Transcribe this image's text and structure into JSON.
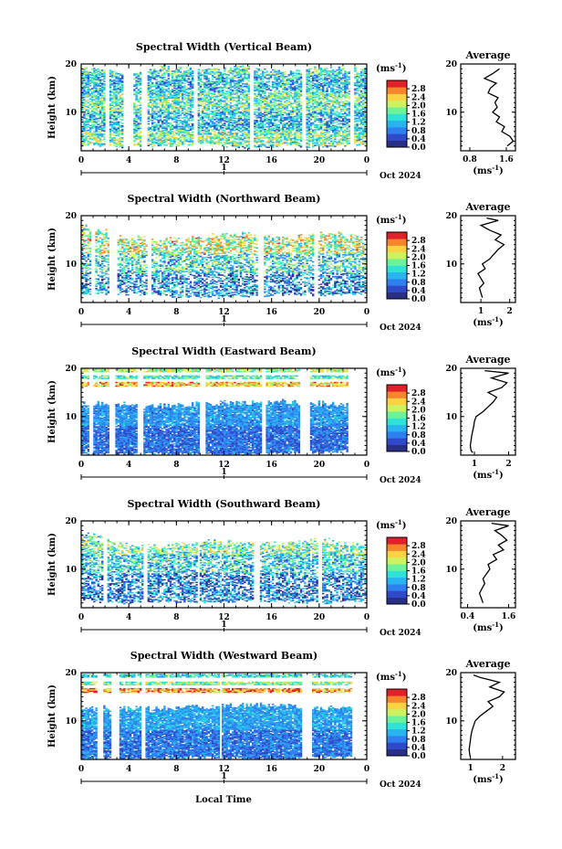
{
  "figure_xlabel": "Local Time",
  "colormap": [
    "#2a2f86",
    "#2f49c9",
    "#2e7ff0",
    "#27b4ef",
    "#2ee3d6",
    "#6cf39a",
    "#cdf260",
    "#fbd241",
    "#f7852c",
    "#e0202a"
  ],
  "chart_data": [
    {
      "type": "heatmap",
      "beam": "Vertical",
      "title": "Spectral Width (Vertical Beam)",
      "ylabel": "Height (km)",
      "xlabel": "",
      "xlim": [
        0,
        24
      ],
      "xticks": [
        "0",
        "4",
        "8",
        "12",
        "16",
        "20",
        "0"
      ],
      "ylim": [
        2,
        20
      ],
      "yticks": [
        "20",
        "10"
      ],
      "date_marker": "1",
      "date_label": "Oct 2024",
      "colorbar": {
        "unit": "(ms",
        "unit_exp": "-1",
        "unit_close": ")",
        "range": [
          0.0,
          3.2
        ],
        "ticks": [
          "2.8",
          "2.4",
          "2.0",
          "1.6",
          "1.2",
          "0.8",
          "0.4",
          "0.0"
        ]
      },
      "gap_hours": [
        [
          2.0,
          2.4
        ],
        [
          3.6,
          4.4
        ],
        [
          5.0,
          5.6
        ],
        [
          9.4,
          9.8
        ],
        [
          14.2,
          14.6
        ],
        [
          18.6,
          19.0
        ],
        [
          22.6,
          23.0
        ]
      ],
      "top_km": [
        19.0,
        18.0,
        19.2,
        18.5,
        19.3,
        18.2,
        19.0,
        18.8
      ],
      "base_km": [
        3.2,
        2.8,
        3.0,
        3.5,
        2.6,
        3.0,
        2.8,
        3.4
      ],
      "level_bands": [
        [
          3.0,
          6.0,
          1.7
        ],
        [
          6.0,
          10.0,
          1.2
        ],
        [
          10.0,
          14.0,
          1.6
        ],
        [
          14.0,
          17.5,
          1.2
        ],
        [
          17.5,
          19.5,
          1.5
        ]
      ],
      "noise": 0.8,
      "fill": 0.72,
      "seed": 11,
      "average_profile": {
        "title": "Average",
        "xlim": [
          0.6,
          1.8
        ],
        "xticks": [
          "0.8",
          "1.6"
        ],
        "xlabel": "(ms",
        "xlabel_exp": "-1",
        "xlabel_close": ")",
        "ylim": [
          2,
          20
        ],
        "yticks": [
          "20",
          "10"
        ],
        "height_km": [
          3,
          4,
          5,
          6,
          7,
          8,
          9,
          10,
          11,
          12,
          13,
          14,
          15,
          16,
          17,
          18,
          19
        ],
        "value_ms": [
          1.62,
          1.75,
          1.68,
          1.5,
          1.56,
          1.38,
          1.45,
          1.3,
          1.4,
          1.35,
          1.42,
          1.2,
          1.25,
          1.38,
          1.12,
          1.3,
          1.45
        ]
      }
    },
    {
      "type": "heatmap",
      "beam": "Northward",
      "title": "Spectral Width (Northward Beam)",
      "ylabel": "Height (km)",
      "xlabel": "",
      "xlim": [
        0,
        24
      ],
      "xticks": [
        "0",
        "4",
        "8",
        "12",
        "16",
        "20",
        "0"
      ],
      "ylim": [
        2,
        20
      ],
      "yticks": [
        "20",
        "10"
      ],
      "date_marker": "1",
      "date_label": "Oct 2024",
      "colorbar": {
        "unit": "(ms",
        "unit_exp": "-1",
        "unit_close": ")",
        "range": [
          0.0,
          3.2
        ],
        "ticks": [
          "2.8",
          "2.4",
          "2.0",
          "1.6",
          "1.2",
          "0.8",
          "0.4",
          "0.0"
        ]
      },
      "gap_hours": [
        [
          0.8,
          1.2
        ],
        [
          2.4,
          3.0
        ],
        [
          5.6,
          6.0
        ],
        [
          14.8,
          15.4
        ],
        [
          19.6,
          20.0
        ]
      ],
      "top_km": [
        18.0,
        15.5,
        14.8,
        15.5,
        16.2,
        15.0,
        16.5,
        15.2
      ],
      "base_km": [
        3.5,
        3.8,
        3.4,
        3.0,
        3.2,
        3.6,
        3.4,
        3.8
      ],
      "level_bands": [
        [
          3.0,
          8.0,
          0.9
        ],
        [
          8.0,
          12.0,
          1.4
        ],
        [
          12.0,
          16.5,
          2.0
        ],
        [
          16.5,
          19.0,
          1.6
        ]
      ],
      "noise": 0.9,
      "fill": 0.55,
      "seed": 23,
      "average_profile": {
        "title": "Average",
        "xlim": [
          0.3,
          2.2
        ],
        "xticks": [
          "1",
          "2"
        ],
        "xlabel": "(ms",
        "xlabel_exp": "-1",
        "xlabel_close": ")",
        "ylim": [
          2,
          20
        ],
        "yticks": [
          "20",
          "10"
        ],
        "height_km": [
          3,
          4,
          5,
          6,
          7,
          8,
          9,
          10,
          11,
          12,
          13,
          14,
          15,
          16,
          17,
          18,
          19,
          19.5
        ],
        "value_ms": [
          1.05,
          1.0,
          0.95,
          1.1,
          1.0,
          0.9,
          1.15,
          1.05,
          1.3,
          1.45,
          1.6,
          1.8,
          1.5,
          1.7,
          1.3,
          1.0,
          1.6,
          1.2
        ]
      }
    },
    {
      "type": "heatmap",
      "beam": "Eastward",
      "title": "Spectral Width (Eastward Beam)",
      "ylabel": "Height (km)",
      "xlabel": "",
      "xlim": [
        0,
        24
      ],
      "xticks": [
        "0",
        "4",
        "8",
        "12",
        "16",
        "20",
        "0"
      ],
      "ylim": [
        2,
        20
      ],
      "yticks": [
        "20",
        "10"
      ],
      "date_marker": "1",
      "date_label": "Oct 2024",
      "colorbar": {
        "unit": "(ms",
        "unit_exp": "-1",
        "unit_close": ")",
        "range": [
          0.0,
          3.2
        ],
        "ticks": [
          "2.8",
          "2.4",
          "2.0",
          "1.6",
          "1.2",
          "0.8",
          "0.4",
          "0.0"
        ]
      },
      "gap_hours": [
        [
          0.6,
          1.0
        ],
        [
          2.4,
          2.8
        ],
        [
          4.8,
          5.2
        ],
        [
          10.0,
          10.4
        ],
        [
          15.2,
          15.6
        ],
        [
          18.4,
          19.2
        ],
        [
          22.4,
          24.0
        ]
      ],
      "top_km": [
        12.5,
        12.4,
        12.2,
        12.6,
        12.8,
        13.0,
        12.6,
        11.8
      ],
      "base_km": [
        2.2,
        2.2,
        2.4,
        2.2,
        2.2,
        2.4,
        2.6,
        2.8
      ],
      "level_bands": [
        [
          2.0,
          8.0,
          0.7
        ],
        [
          8.0,
          12.5,
          0.95
        ]
      ],
      "upper_layers": [
        [
          16.2,
          17.2,
          2.4
        ],
        [
          17.8,
          18.4,
          1.6
        ],
        [
          19.2,
          19.8,
          2.0
        ]
      ],
      "noise": 0.35,
      "fill": 0.92,
      "seed": 37,
      "average_profile": {
        "title": "Average",
        "xlim": [
          0.6,
          2.2
        ],
        "xticks": [
          "1",
          "2"
        ],
        "xlabel": "(ms",
        "xlabel_exp": "-1",
        "xlabel_close": ")",
        "ylim": [
          2,
          20
        ],
        "yticks": [
          "20",
          "10"
        ],
        "height_km": [
          2.5,
          3,
          4,
          5,
          6,
          7,
          8,
          9,
          10,
          11,
          12,
          13,
          14,
          15,
          16,
          17,
          18,
          19,
          19.5
        ],
        "value_ms": [
          0.95,
          0.9,
          0.88,
          0.9,
          0.92,
          0.95,
          0.98,
          1.0,
          1.05,
          1.25,
          1.4,
          1.55,
          1.65,
          1.4,
          1.8,
          1.95,
          1.5,
          2.0,
          1.3
        ]
      }
    },
    {
      "type": "heatmap",
      "beam": "Southward",
      "title": "Spectral Width (Southward Beam)",
      "ylabel": "Height (km)",
      "xlabel": "",
      "xlim": [
        0,
        24
      ],
      "xticks": [
        "0",
        "4",
        "8",
        "12",
        "16",
        "20",
        "0"
      ],
      "ylim": [
        2,
        20
      ],
      "yticks": [
        "20",
        "10"
      ],
      "date_marker": "1",
      "date_label": "Oct 2024",
      "colorbar": {
        "unit": "(ms",
        "unit_exp": "-1",
        "unit_close": ")",
        "range": [
          0.0,
          3.2
        ],
        "ticks": [
          "2.8",
          "2.4",
          "2.0",
          "1.6",
          "1.2",
          "0.8",
          "0.4",
          "0.0"
        ]
      },
      "gap_hours": [
        [
          1.8,
          2.2
        ],
        [
          5.2,
          5.6
        ],
        [
          9.8,
          10.0
        ],
        [
          14.6,
          15.0
        ],
        [
          20.0,
          20.2
        ]
      ],
      "top_km": [
        17.5,
        15.0,
        14.5,
        15.8,
        15.2,
        15.0,
        16.0,
        14.6
      ],
      "base_km": [
        3.5,
        3.0,
        3.2,
        3.0,
        3.4,
        3.2,
        3.0,
        3.6
      ],
      "level_bands": [
        [
          3.0,
          9.0,
          0.75
        ],
        [
          9.0,
          13.0,
          1.3
        ],
        [
          13.0,
          16.5,
          1.7
        ],
        [
          16.5,
          19.5,
          1.4
        ]
      ],
      "noise": 0.8,
      "fill": 0.6,
      "seed": 51,
      "average_profile": {
        "title": "Average",
        "xlim": [
          0.2,
          1.8
        ],
        "xticks": [
          "0.4",
          "1.6"
        ],
        "xlabel": "(ms",
        "xlabel_exp": "-1",
        "xlabel_close": ")",
        "ylim": [
          2,
          20
        ],
        "yticks": [
          "20",
          "10"
        ],
        "height_km": [
          3,
          4,
          5,
          6,
          7,
          8,
          9,
          10,
          11,
          12,
          13,
          14,
          15,
          16,
          17,
          18,
          19,
          19.5
        ],
        "value_ms": [
          0.85,
          0.8,
          0.75,
          0.82,
          0.9,
          0.85,
          0.95,
          1.05,
          1.0,
          1.25,
          1.15,
          1.45,
          1.3,
          1.55,
          1.4,
          1.2,
          1.6,
          1.1
        ]
      }
    },
    {
      "type": "heatmap",
      "beam": "Westward",
      "title": "Spectral Width (Westward Beam)",
      "ylabel": "Height (km)",
      "xlabel": "",
      "xlim": [
        0,
        24
      ],
      "xticks": [
        "0",
        "4",
        "8",
        "12",
        "16",
        "20",
        "0"
      ],
      "ylim": [
        2,
        20
      ],
      "yticks": [
        "20",
        "10"
      ],
      "date_marker": "1",
      "date_label": "Oct 2024",
      "colorbar": {
        "unit": "(ms",
        "unit_exp": "-1",
        "unit_close": ")",
        "range": [
          0.0,
          3.2
        ],
        "ticks": [
          "2.8",
          "2.4",
          "2.0",
          "1.6",
          "1.2",
          "0.8",
          "0.4",
          "0.0"
        ]
      },
      "gap_hours": [
        [
          1.4,
          1.8
        ],
        [
          2.6,
          3.2
        ],
        [
          5.0,
          5.4
        ],
        [
          11.6,
          11.8
        ],
        [
          18.6,
          19.4
        ],
        [
          22.8,
          24.0
        ]
      ],
      "top_km": [
        12.5,
        12.4,
        12.6,
        12.8,
        13.2,
        13.0,
        12.6,
        12.0
      ],
      "base_km": [
        2.2,
        2.2,
        2.2,
        2.4,
        2.2,
        2.2,
        2.4,
        2.6
      ],
      "level_bands": [
        [
          2.0,
          8.0,
          0.75
        ],
        [
          8.0,
          12.5,
          1.0
        ]
      ],
      "upper_layers": [
        [
          15.8,
          16.6,
          2.6
        ],
        [
          17.4,
          18.0,
          1.8
        ],
        [
          19.0,
          19.6,
          1.4
        ]
      ],
      "noise": 0.35,
      "fill": 0.92,
      "seed": 67,
      "average_profile": {
        "title": "Average",
        "xlim": [
          0.7,
          2.4
        ],
        "xticks": [
          "1",
          "2"
        ],
        "xlabel": "(ms",
        "xlabel_exp": "-1",
        "xlabel_close": ")",
        "ylim": [
          2,
          20
        ],
        "yticks": [
          "20",
          "10"
        ],
        "height_km": [
          2.5,
          3,
          4,
          5,
          6,
          7,
          8,
          9,
          10,
          11,
          12,
          13,
          14,
          15,
          16,
          17,
          18,
          19,
          19.5
        ],
        "value_ms": [
          1.0,
          0.98,
          0.96,
          0.98,
          1.0,
          1.02,
          1.05,
          1.1,
          1.15,
          1.3,
          1.5,
          1.7,
          1.55,
          1.9,
          2.05,
          1.6,
          1.9,
          1.3,
          1.1
        ]
      }
    }
  ]
}
